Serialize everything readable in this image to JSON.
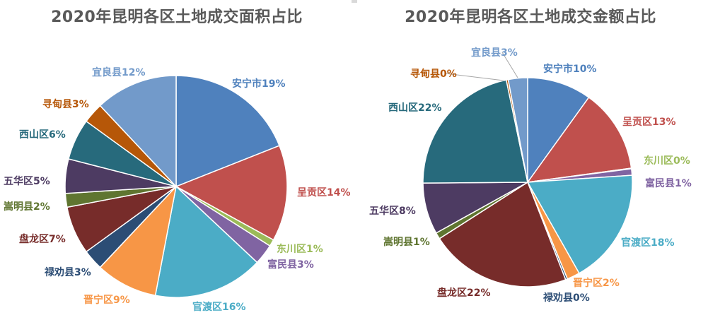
{
  "chart_data": [
    {
      "type": "pie",
      "title": "2020年昆明各区土地成交面积占比",
      "slices": [
        {
          "name": "安宁市",
          "value": 19,
          "label": "安宁市19%",
          "color": "#4F81BD"
        },
        {
          "name": "呈贡区",
          "value": 14,
          "label": "呈贡区14%",
          "color": "#C0504D"
        },
        {
          "name": "东川区",
          "value": 1,
          "label": "东川区1%",
          "color": "#9BBB59"
        },
        {
          "name": "富民县",
          "value": 3,
          "label": "富民县3%",
          "color": "#8064A2"
        },
        {
          "name": "官渡区",
          "value": 16,
          "label": "官渡区16%",
          "color": "#4BACC6"
        },
        {
          "name": "晋宁区",
          "value": 9,
          "label": "晋宁区9%",
          "color": "#F79646"
        },
        {
          "name": "禄劝县",
          "value": 3,
          "label": "禄劝县3%",
          "color": "#2C4D75"
        },
        {
          "name": "盘龙区",
          "value": 7,
          "label": "盘龙区7%",
          "color": "#772C2A"
        },
        {
          "name": "嵩明县",
          "value": 2,
          "label": "嵩明县2%",
          "color": "#5F7530"
        },
        {
          "name": "五华区",
          "value": 5,
          "label": "五华区5%",
          "color": "#4D3B62"
        },
        {
          "name": "西山区",
          "value": 6,
          "label": "西山区6%",
          "color": "#276A7C"
        },
        {
          "name": "寻甸县",
          "value": 3,
          "label": "寻甸县3%",
          "color": "#B65708"
        },
        {
          "name": "宜良县",
          "value": 12,
          "label": "宜良县12%",
          "color": "#729ACA"
        }
      ]
    },
    {
      "type": "pie",
      "title": "2020年昆明各区土地成交金额占比",
      "slices": [
        {
          "name": "安宁市",
          "value": 10,
          "label": "安宁市10%",
          "color": "#4F81BD"
        },
        {
          "name": "呈贡区",
          "value": 13,
          "label": "呈贡区13%",
          "color": "#C0504D"
        },
        {
          "name": "东川区",
          "value": 0.1,
          "label": "东川区0%",
          "color": "#9BBB59"
        },
        {
          "name": "富民县",
          "value": 1,
          "label": "富民县1%",
          "color": "#8064A2"
        },
        {
          "name": "官渡区",
          "value": 18,
          "label": "官渡区18%",
          "color": "#4BACC6"
        },
        {
          "name": "晋宁区",
          "value": 2,
          "label": "晋宁区2%",
          "color": "#F79646"
        },
        {
          "name": "禄劝县",
          "value": 0.3,
          "label": "禄劝县0%",
          "color": "#2C4D75"
        },
        {
          "name": "盘龙区",
          "value": 22,
          "label": "盘龙区22%",
          "color": "#772C2A"
        },
        {
          "name": "嵩明县",
          "value": 1,
          "label": "嵩明县1%",
          "color": "#5F7530"
        },
        {
          "name": "五华区",
          "value": 8,
          "label": "五华区8%",
          "color": "#4D3B62"
        },
        {
          "name": "西山区",
          "value": 22,
          "label": "西山区22%",
          "color": "#276A7C"
        },
        {
          "name": "寻甸县",
          "value": 0.3,
          "label": "寻甸县0%",
          "color": "#B65708"
        },
        {
          "name": "宜良县",
          "value": 3,
          "label": "宜良县3%",
          "color": "#729ACA"
        }
      ]
    }
  ]
}
